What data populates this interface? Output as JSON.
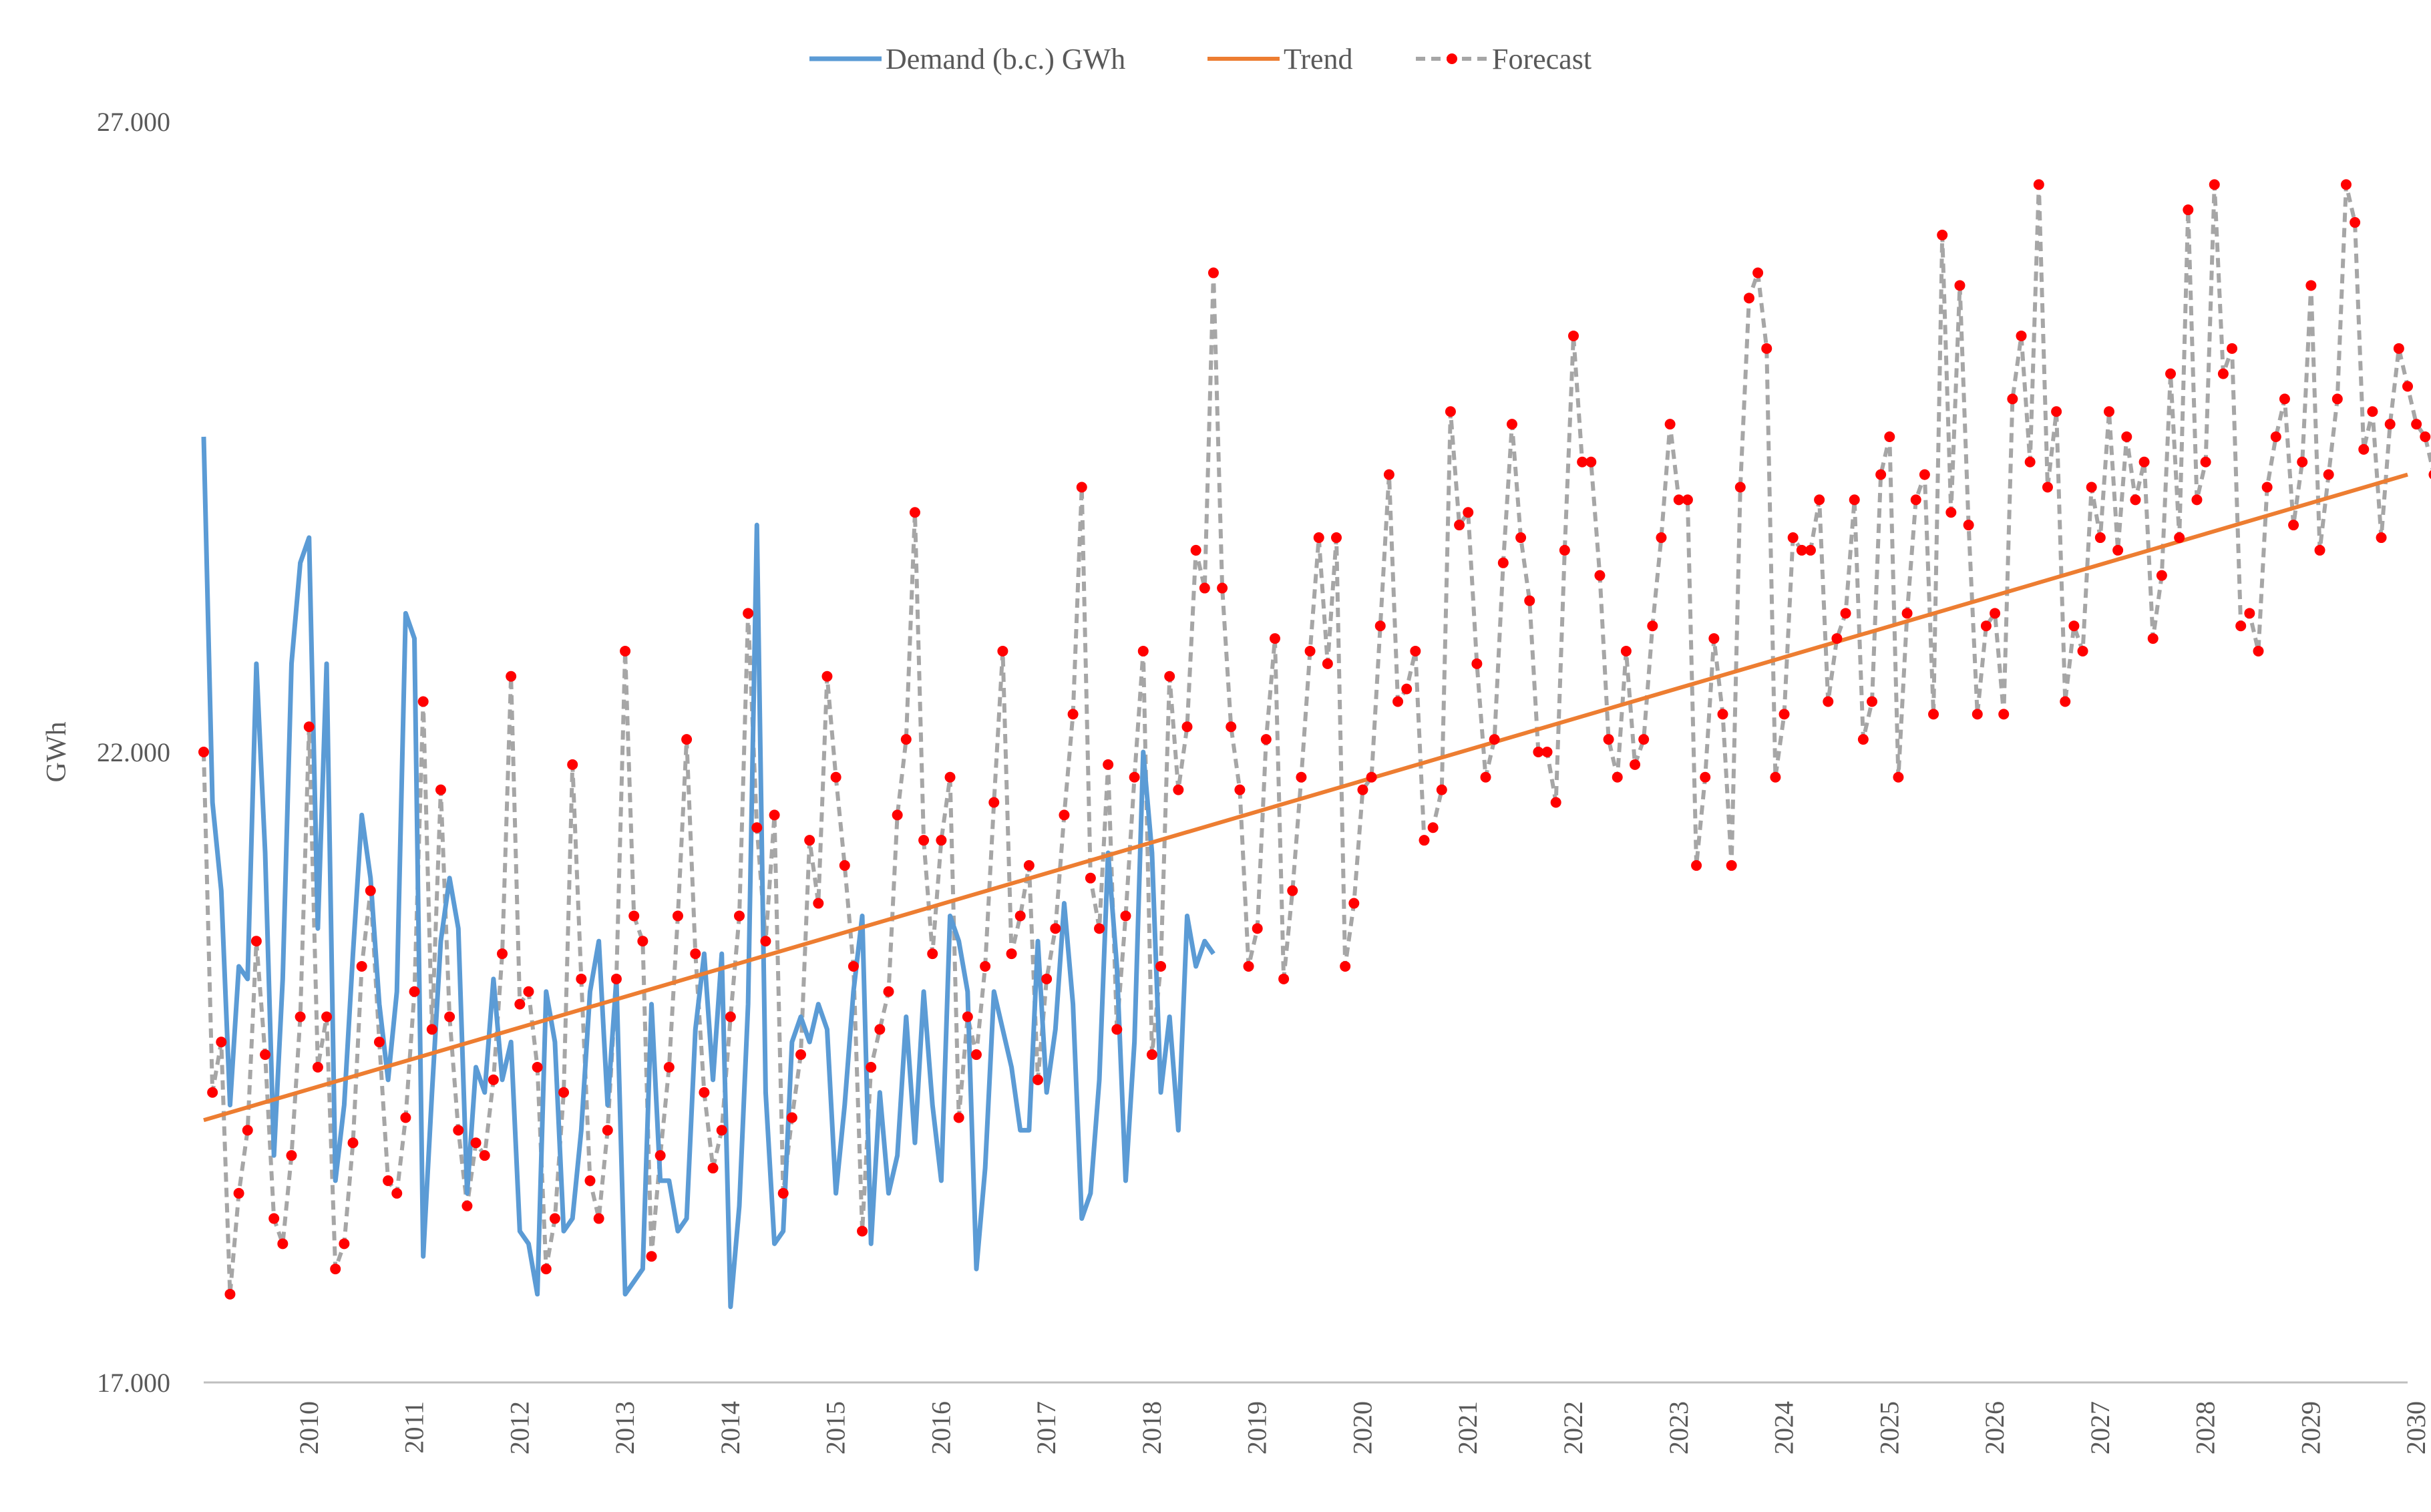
{
  "chart_data": {
    "type": "line",
    "title": "",
    "xlabel": "",
    "ylabel": "GWh",
    "ylim": [
      17000,
      27000
    ],
    "yticks": [
      {
        "value": 17000,
        "label": "17.000"
      },
      {
        "value": 22000,
        "label": "22.000"
      },
      {
        "value": 27000,
        "label": "27.000"
      }
    ],
    "xticks": [
      "2010",
      "2011",
      "2012",
      "2013",
      "2014",
      "2015",
      "2016",
      "2017",
      "2018",
      "2019",
      "2020",
      "2021",
      "2022",
      "2023",
      "2024",
      "2025",
      "2026",
      "2027",
      "2028",
      "2029",
      "2030"
    ],
    "x_range": [
      "2009-07",
      "2030-06"
    ],
    "grid": false,
    "legend_position": "top",
    "series": [
      {
        "name": "Demand (b.c.) GWh",
        "color": "#5b9bd5",
        "style": "solid",
        "start": "2009-07",
        "values": [
          24500,
          21600,
          20900,
          19200,
          20300,
          20200,
          22700,
          21200,
          18800,
          20200,
          22700,
          23500,
          23700,
          20600,
          22700,
          18600,
          19200,
          20400,
          21500,
          21000,
          20000,
          19400,
          20100,
          23100,
          22900,
          18000,
          19300,
          20500,
          21000,
          20600,
          18500,
          19500,
          19300,
          20200,
          19400,
          19700,
          18200,
          18100,
          17700,
          20100,
          19700,
          18200,
          18300,
          19000,
          20100,
          20500,
          19200,
          20200,
          17700,
          17800,
          17900,
          20000,
          18600,
          18600,
          18200,
          18300,
          19800,
          20400,
          19400,
          20400,
          17600,
          18400,
          20000,
          23800,
          19300,
          18100,
          18200,
          19700,
          19900,
          19700,
          20000,
          19800,
          18500,
          19200,
          20100,
          20700,
          18100,
          19300,
          18500,
          18800,
          19900,
          18900,
          20100,
          19200,
          18600,
          20700,
          20500,
          20100,
          17900,
          18700,
          20100,
          19800,
          19500,
          19000,
          19000,
          20500,
          19300,
          19800,
          20800,
          20000,
          18300,
          18500,
          19400,
          21200,
          20300,
          18600,
          19700,
          22000,
          21200,
          19300,
          19900,
          19000,
          20700,
          20300,
          20500,
          20400
        ]
      },
      {
        "name": "Trend",
        "color": "#ed7d31",
        "style": "solid",
        "start": "2009-07",
        "end": "2030-06",
        "start_value": 19080,
        "end_value": 24200
      },
      {
        "name": "Forecast",
        "color": "#a6a6a6",
        "marker_color": "#ff0000",
        "style": "dashed",
        "start": "2009-07",
        "values": [
          22000,
          19300,
          19700,
          17700,
          18500,
          19000,
          20500,
          19600,
          18300,
          18100,
          18800,
          19900,
          22200,
          19500,
          19900,
          17900,
          18100,
          18900,
          20300,
          20900,
          19700,
          18600,
          18500,
          19100,
          20100,
          22400,
          19800,
          21700,
          19900,
          19000,
          18400,
          18900,
          18800,
          19400,
          20400,
          22600,
          20000,
          20100,
          19500,
          17900,
          18300,
          19300,
          21900,
          20200,
          18600,
          18300,
          19000,
          20200,
          22800,
          20700,
          20500,
          18000,
          18800,
          19500,
          20700,
          22100,
          20400,
          19300,
          18700,
          19000,
          19900,
          20700,
          23100,
          21400,
          20500,
          21500,
          18500,
          19100,
          19600,
          21300,
          20800,
          22600,
          21800,
          21100,
          20300,
          18200,
          19500,
          19800,
          20100,
          21500,
          22100,
          23900,
          21300,
          20400,
          21300,
          21800,
          19100,
          19900,
          19600,
          20300,
          21600,
          22800,
          20400,
          20700,
          21100,
          19400,
          20200,
          20600,
          21500,
          22300,
          24100,
          21000,
          20600,
          21900,
          19800,
          20700,
          21800,
          22800,
          19600,
          20300,
          22600,
          21700,
          22200,
          23600,
          23300,
          25800,
          23300,
          22200,
          21700,
          20300,
          20600,
          22100,
          22900,
          20200,
          20900,
          21800,
          22800,
          23700,
          22700,
          23700,
          20300,
          20800,
          21700,
          21800,
          23000,
          24200,
          22400,
          22500,
          22800,
          21300,
          21400,
          21700,
          24700,
          23800,
          23900,
          22700,
          21800,
          22100,
          23500,
          24600,
          23700,
          23200,
          22000,
          22000,
          21600,
          23600,
          25300,
          24300,
          24300,
          23400,
          22100,
          21800,
          22800,
          21900,
          22100,
          23000,
          23700,
          24600,
          24000,
          24000,
          21100,
          21800,
          22900,
          22300,
          21100,
          24100,
          25600,
          25800,
          25200,
          21800,
          22300,
          23700,
          23600,
          23600,
          24000,
          22400,
          22900,
          23100,
          24000,
          22100,
          22400,
          24200,
          24500,
          21800,
          23100,
          24000,
          24200,
          22300,
          26100,
          23900,
          25700,
          23800,
          22300,
          23000,
          23100,
          22300,
          24800,
          25300,
          24300,
          26500,
          24100,
          24700,
          22400,
          23000,
          22800,
          24100,
          23700,
          24700,
          23600,
          24500,
          24000,
          24300,
          22900,
          23400,
          25000,
          23700,
          26300,
          24000,
          24300,
          26500,
          25000,
          25200,
          23000,
          23100,
          22800,
          24100,
          24500,
          24800,
          23800,
          24300,
          25700,
          23600,
          24200,
          24800,
          26500,
          26200,
          24400,
          24700,
          23700,
          24600,
          25200,
          24900,
          24600,
          24500,
          24200,
          24500,
          24800,
          25000,
          24800,
          25000,
          24700
        ]
      }
    ],
    "legend_entries": [
      {
        "label": "Demand (b.c.) GWh",
        "color": "#5b9bd5",
        "style": "solid"
      },
      {
        "label": "Trend",
        "color": "#ed7d31",
        "style": "solid"
      },
      {
        "label": "Forecast",
        "color": "#a6a6a6",
        "marker_color": "#ff0000",
        "style": "dashed-marker"
      }
    ]
  }
}
